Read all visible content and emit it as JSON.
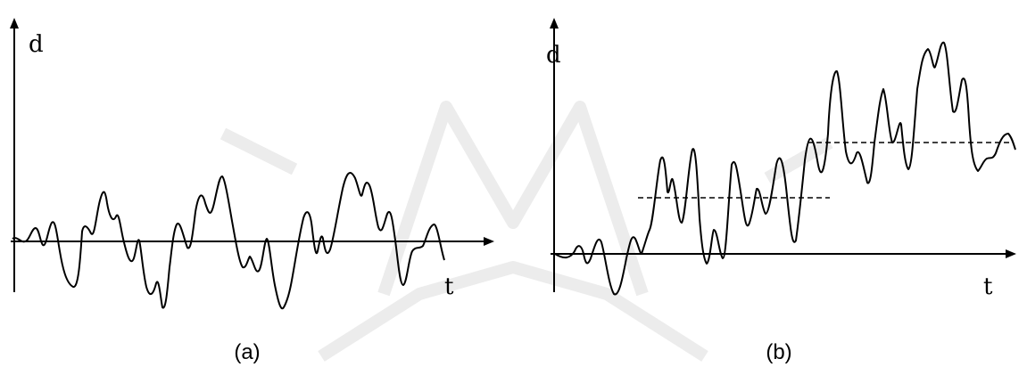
{
  "panel_a": {
    "y_axis_label": "d",
    "x_axis_label": "t",
    "caption": "(a)"
  },
  "panel_b": {
    "y_axis_label": "d",
    "x_axis_label": "t",
    "caption": "(b)"
  },
  "colors": {
    "ink": "#000000",
    "watermark": "#e6e6e6"
  }
}
